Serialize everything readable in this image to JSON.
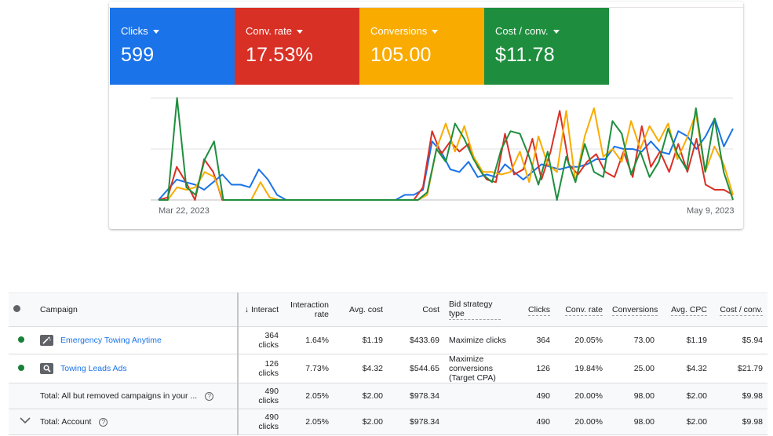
{
  "metrics": [
    {
      "name": "Clicks",
      "value": "599",
      "color": "#1a73e8"
    },
    {
      "name": "Conv. rate",
      "value": "17.53%",
      "color": "#d93025"
    },
    {
      "name": "Conversions",
      "value": "105.00",
      "color": "#f9ab00"
    },
    {
      "name": "Cost / conv.",
      "value": "$11.78",
      "color": "#1e8e3e"
    }
  ],
  "chart": {
    "start_label": "Mar 22, 2023",
    "end_label": "May 9, 2023"
  },
  "chart_data": {
    "type": "line",
    "xlabel": "",
    "ylabel": "",
    "x_range": [
      "Mar 22, 2023",
      "May 9, 2023"
    ],
    "ylim": [
      0,
      2
    ],
    "grid": true,
    "series": [
      {
        "color": "#1a73e8",
        "values": [
          0.0,
          0.2,
          0.4,
          0.35,
          0.3,
          0.2,
          0.35,
          0.5,
          0.3,
          0.3,
          0.25,
          0.6,
          0.4,
          0.1,
          0.0,
          0.0,
          0.0,
          0.0,
          0.0,
          0.0,
          0.0,
          0.0,
          0.0,
          0.0,
          0.0,
          0.0,
          0.0,
          0.1,
          0.1,
          0.2,
          1.15,
          0.95,
          0.6,
          0.55,
          0.75,
          0.45,
          0.5,
          0.45,
          0.7,
          0.55,
          0.4,
          0.55,
          0.7,
          0.65,
          0.6,
          0.65,
          0.65,
          0.7,
          0.8,
          0.8,
          1.05,
          1.0,
          1.0,
          0.95,
          1.15,
          0.95,
          0.9,
          1.35,
          1.25,
          1.0,
          1.25,
          1.6,
          1.05,
          1.4
        ]
      },
      {
        "color": "#d93025",
        "values": [
          0.0,
          0.05,
          0.65,
          0.35,
          0.0,
          0.8,
          0.55,
          0.0,
          0.0,
          0.0,
          0.0,
          0.0,
          0.0,
          0.0,
          0.0,
          0.0,
          0.0,
          0.0,
          0.0,
          0.0,
          0.0,
          0.0,
          0.0,
          0.0,
          0.0,
          0.0,
          0.0,
          0.0,
          0.0,
          0.25,
          1.35,
          0.9,
          1.15,
          0.95,
          1.1,
          0.65,
          0.4,
          0.35,
          1.3,
          0.5,
          0.6,
          1.2,
          0.4,
          0.95,
          1.75,
          0.7,
          0.5,
          0.75,
          0.9,
          0.55,
          0.45,
          0.95,
          0.45,
          1.45,
          0.65,
          0.95,
          0.55,
          1.1,
          0.55,
          1.2,
          0.3,
          0.2,
          0.2,
          0.1
        ]
      },
      {
        "color": "#f9ab00",
        "values": [
          0.0,
          0.0,
          0.25,
          0.2,
          0.25,
          0.55,
          0.45,
          0.0,
          0.0,
          0.0,
          0.0,
          0.35,
          0.05,
          0.0,
          0.0,
          0.0,
          0.0,
          0.0,
          0.0,
          0.0,
          0.0,
          0.0,
          0.0,
          0.0,
          0.0,
          0.0,
          0.0,
          0.0,
          0.0,
          0.1,
          1.0,
          1.5,
          0.95,
          1.45,
          0.85,
          0.55,
          0.55,
          0.5,
          0.55,
          0.95,
          0.35,
          1.25,
          0.7,
          0.55,
          1.75,
          0.35,
          1.25,
          1.8,
          0.85,
          1.0,
          0.75,
          1.55,
          1.0,
          1.45,
          1.15,
          1.5,
          0.8,
          1.2,
          1.7,
          0.55,
          1.05,
          0.7,
          0.1
        ]
      },
      {
        "color": "#1e8e3e",
        "values": [
          0.0,
          0.0,
          2.0,
          0.25,
          0.1,
          0.8,
          1.15,
          0.0,
          0.0,
          0.0,
          0.0,
          0.0,
          0.0,
          0.0,
          0.0,
          0.0,
          0.0,
          0.0,
          0.0,
          0.0,
          0.0,
          0.0,
          0.0,
          0.0,
          0.0,
          0.0,
          0.0,
          0.0,
          0.0,
          0.15,
          1.0,
          0.75,
          1.5,
          1.2,
          0.8,
          0.5,
          0.35,
          1.0,
          1.35,
          1.3,
          0.85,
          0.3,
          0.95,
          0.0,
          0.85,
          0.35,
          1.1,
          0.55,
          0.45,
          1.55,
          1.3,
          0.5,
          0.95,
          0.45,
          0.75,
          1.4,
          0.9,
          0.6,
          1.8,
          0.55,
          1.6,
          0.55,
          0.0
        ]
      }
    ]
  },
  "table": {
    "headers": {
      "campaign": "Campaign",
      "interactions": "Interact",
      "interaction_rate": "Interaction rate",
      "avg_cost": "Avg. cost",
      "cost": "Cost",
      "bid_strategy": "Bid strategy type",
      "clicks": "Clicks",
      "conv_rate": "Conv. rate",
      "conversions": "Conversions",
      "avg_cpc": "Avg. CPC",
      "cost_conv": "Cost / conv."
    },
    "rows": [
      {
        "campaign": "Emergency Towing Anytime",
        "icon": "wand-icon",
        "interactions": "364",
        "interactions_unit": "clicks",
        "interaction_rate": "1.64%",
        "avg_cost": "$1.19",
        "cost": "$433.69",
        "bid_strategy": "Maximize clicks",
        "clicks": "364",
        "conv_rate": "20.05%",
        "conversions": "73.00",
        "avg_cpc": "$1.19",
        "cost_conv": "$5.94"
      },
      {
        "campaign": "Towing Leads Ads",
        "icon": "search-icon",
        "interactions": "126",
        "interactions_unit": "clicks",
        "interaction_rate": "7.73%",
        "avg_cost": "$4.32",
        "cost": "$544.65",
        "bid_strategy": "Maximize conversions (Target CPA)",
        "clicks": "126",
        "conv_rate": "19.84%",
        "conversions": "25.00",
        "avg_cpc": "$4.32",
        "cost_conv": "$21.79"
      }
    ],
    "totals": [
      {
        "label": "Total: All but removed campaigns in your ...",
        "interactions": "490",
        "interactions_unit": "clicks",
        "interaction_rate": "2.05%",
        "avg_cost": "$2.00",
        "cost": "$978.34",
        "clicks": "490",
        "conv_rate": "20.00%",
        "conversions": "98.00",
        "avg_cpc": "$2.00",
        "cost_conv": "$9.98"
      },
      {
        "label": "Total: Account",
        "interactions": "490",
        "interactions_unit": "clicks",
        "interaction_rate": "2.05%",
        "avg_cost": "$2.00",
        "cost": "$978.34",
        "clicks": "490",
        "conv_rate": "20.00%",
        "conversions": "98.00",
        "avg_cpc": "$2.00",
        "cost_conv": "$9.98"
      }
    ]
  }
}
